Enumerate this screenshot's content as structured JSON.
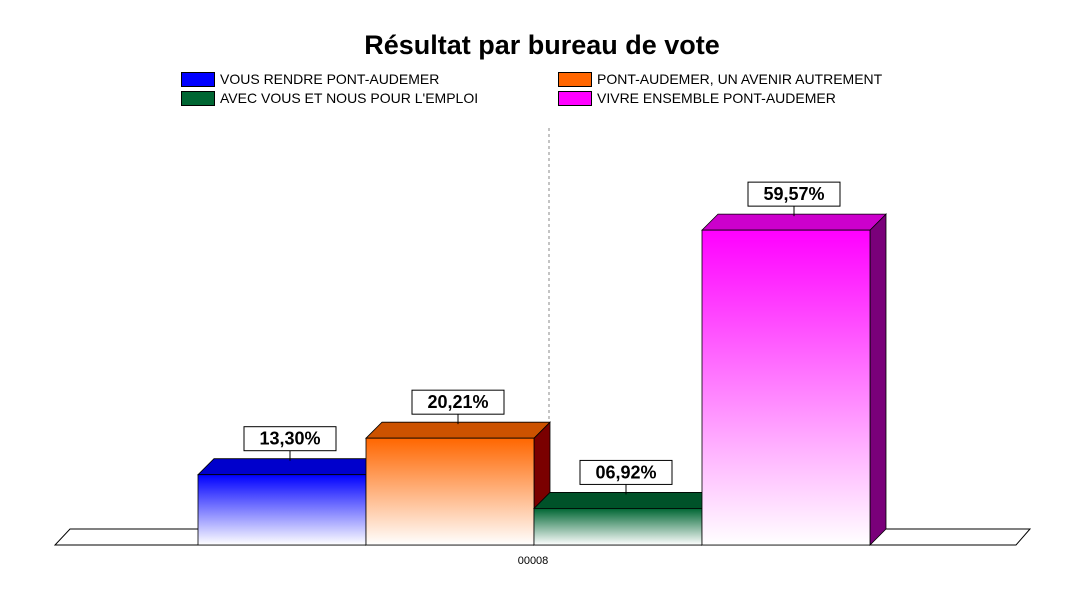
{
  "chart_data": {
    "type": "bar",
    "title": "Résultat par bureau de vote",
    "xlabel": "",
    "ylabel": "",
    "categories": [
      "00008"
    ],
    "ylim": [
      0,
      70
    ],
    "grid": false,
    "legend_position": "top",
    "series": [
      {
        "name": "VOUS RENDRE PONT-AUDEMER",
        "values": [
          13.3
        ],
        "label": "13,30%",
        "color": "#0000ff",
        "side_color": "#00008b"
      },
      {
        "name": "PONT-AUDEMER, UN AVENIR AUTREMENT",
        "values": [
          20.21
        ],
        "label": "20,21%",
        "color": "#ff6600",
        "side_color": "#7a0000"
      },
      {
        "name": "AVEC VOUS ET NOUS POUR L'EMPLOI",
        "values": [
          6.92
        ],
        "label": "06,92%",
        "color": "#006633",
        "side_color": "#003300"
      },
      {
        "name": "VIVRE ENSEMBLE PONT-AUDEMER",
        "values": [
          59.57
        ],
        "label": "59,57%",
        "color": "#ff00ff",
        "side_color": "#7a007a"
      }
    ]
  }
}
